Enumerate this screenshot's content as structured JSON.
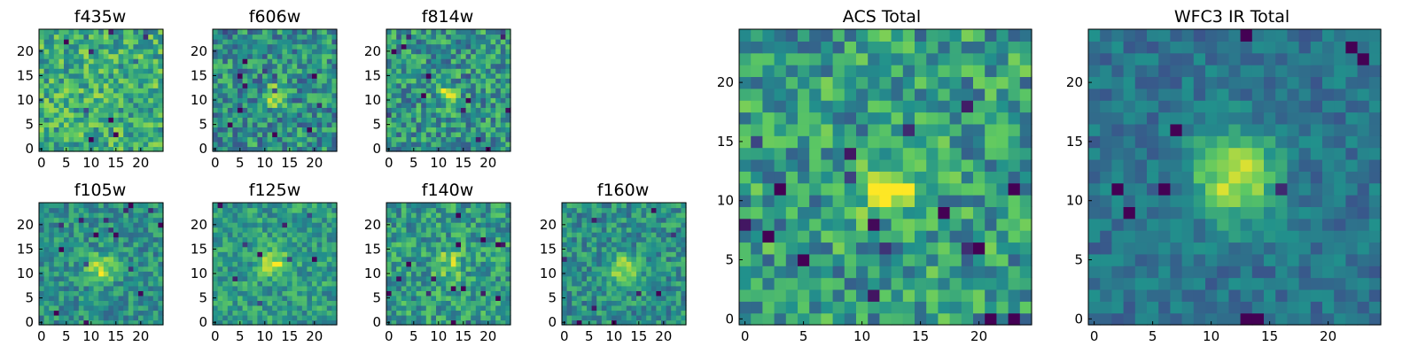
{
  "figure": {
    "background": "#ffffff"
  },
  "chart_data": {
    "type": "heatmap",
    "colormap": "viridis",
    "colormap_stops": [
      "#440154",
      "#3b528b",
      "#21918c",
      "#5ec962",
      "#fde725"
    ],
    "grid_size": 25,
    "panels": [
      {
        "id": "f435w",
        "title": "f435w",
        "xticks": [
          0,
          5,
          10,
          15,
          20
        ],
        "yticks": [
          0,
          5,
          10,
          15,
          20
        ],
        "source_peak": [
          12,
          11
        ],
        "source_strength": 0.05,
        "noise": 0.4,
        "base": 0.62,
        "scale": 1.5,
        "seed": 11
      },
      {
        "id": "f606w",
        "title": "f606w",
        "xticks": [
          0,
          5,
          10,
          15,
          20
        ],
        "yticks": [
          0,
          5,
          10,
          15,
          20
        ],
        "source_peak": [
          12,
          11
        ],
        "source_strength": 0.35,
        "noise": 0.42,
        "base": 0.5,
        "scale": 1.5,
        "seed": 23
      },
      {
        "id": "f814w",
        "title": "f814w",
        "xticks": [
          0,
          5,
          10,
          15,
          20
        ],
        "yticks": [
          0,
          5,
          10,
          15,
          20
        ],
        "source_peak": [
          12,
          11
        ],
        "source_strength": 0.35,
        "noise": 0.42,
        "base": 0.52,
        "scale": 1.5,
        "seed": 37
      },
      {
        "id": "f105w",
        "title": "f105w",
        "xticks": [
          0,
          5,
          10,
          15,
          20
        ],
        "yticks": [
          0,
          5,
          10,
          15,
          20
        ],
        "source_peak": [
          12,
          11
        ],
        "source_strength": 0.4,
        "noise": 0.3,
        "base": 0.5,
        "scale": 2.0,
        "seed": 41
      },
      {
        "id": "f125w",
        "title": "f125w",
        "xticks": [
          0,
          5,
          10,
          15,
          20
        ],
        "yticks": [
          0,
          5,
          10,
          15,
          20
        ],
        "source_peak": [
          12,
          12
        ],
        "source_strength": 0.35,
        "noise": 0.3,
        "base": 0.55,
        "scale": 2.0,
        "seed": 53
      },
      {
        "id": "f140w",
        "title": "f140w",
        "xticks": [
          0,
          5,
          10,
          15,
          20
        ],
        "yticks": [
          0,
          5,
          10,
          15,
          20
        ],
        "source_peak": [
          12,
          12
        ],
        "source_strength": 0.25,
        "noise": 0.36,
        "base": 0.55,
        "scale": 2.0,
        "seed": 67
      },
      {
        "id": "f160w",
        "title": "f160w",
        "xticks": [
          0,
          5,
          10,
          15,
          20
        ],
        "yticks": [
          0,
          5,
          10,
          15,
          20
        ],
        "source_peak": [
          12,
          11
        ],
        "source_strength": 0.4,
        "noise": 0.32,
        "base": 0.5,
        "scale": 2.0,
        "seed": 79
      },
      {
        "id": "acs-total",
        "title": "ACS Total",
        "xticks": [
          0,
          5,
          10,
          15,
          20
        ],
        "yticks": [
          0,
          5,
          10,
          15,
          20
        ],
        "source_peak": [
          12,
          11
        ],
        "source_strength": 0.55,
        "noise": 0.42,
        "base": 0.55,
        "scale": 1.5,
        "seed": 83
      },
      {
        "id": "wfc3-ir-total",
        "title": "WFC3 IR Total",
        "xticks": [
          0,
          5,
          10,
          15,
          20
        ],
        "yticks": [
          0,
          5,
          10,
          15,
          20
        ],
        "source_peak": [
          12,
          12
        ],
        "source_strength": 0.55,
        "noise": 0.2,
        "base": 0.38,
        "scale": 2.5,
        "seed": 97
      }
    ]
  }
}
